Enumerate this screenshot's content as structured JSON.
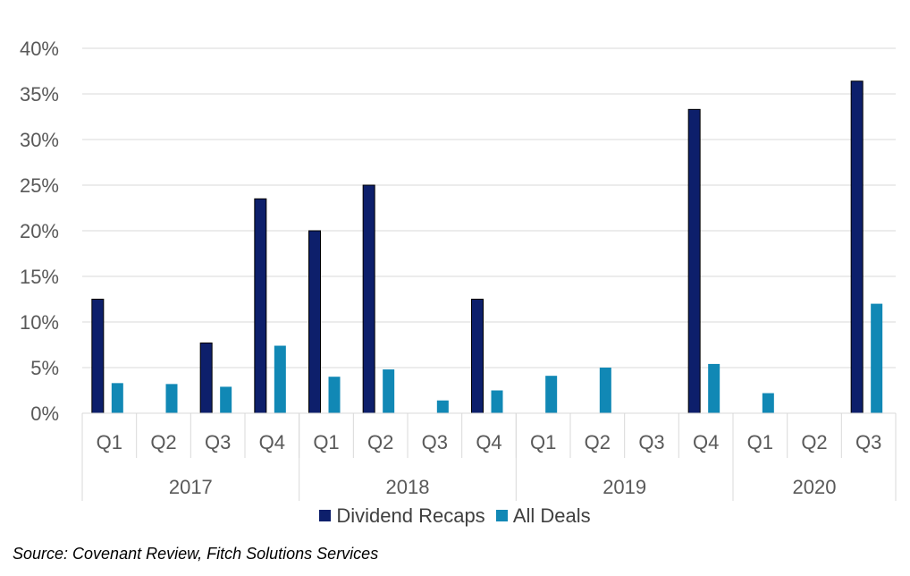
{
  "chart_data": {
    "type": "bar",
    "title": "",
    "xlabel": "",
    "ylabel": "",
    "ylim": [
      0,
      40
    ],
    "yticks": [
      "0%",
      "5%",
      "10%",
      "15%",
      "20%",
      "25%",
      "30%",
      "35%",
      "40%"
    ],
    "grid": true,
    "legend_position": "bottom",
    "years": [
      {
        "label": "2017",
        "quarters": 4
      },
      {
        "label": "2018",
        "quarters": 4
      },
      {
        "label": "2019",
        "quarters": 4
      },
      {
        "label": "2020",
        "quarters": 3
      }
    ],
    "categories": [
      "Q1",
      "Q2",
      "Q3",
      "Q4",
      "Q1",
      "Q2",
      "Q3",
      "Q4",
      "Q1",
      "Q2",
      "Q3",
      "Q4",
      "Q1",
      "Q2",
      "Q3"
    ],
    "series": [
      {
        "name": "Dividend Recaps",
        "color": "#0d1f6b",
        "values": [
          12.5,
          0,
          7.7,
          23.5,
          20.0,
          25.0,
          0,
          12.5,
          0,
          0,
          0,
          33.3,
          0,
          0,
          36.4
        ]
      },
      {
        "name": "All Deals",
        "color": "#1188b5",
        "values": [
          3.3,
          3.2,
          2.9,
          7.4,
          4.0,
          4.8,
          1.4,
          2.5,
          4.1,
          5.0,
          0,
          5.4,
          2.2,
          0,
          12.0
        ]
      }
    ]
  },
  "source": "Source: Covenant Review, Fitch Solutions Services"
}
